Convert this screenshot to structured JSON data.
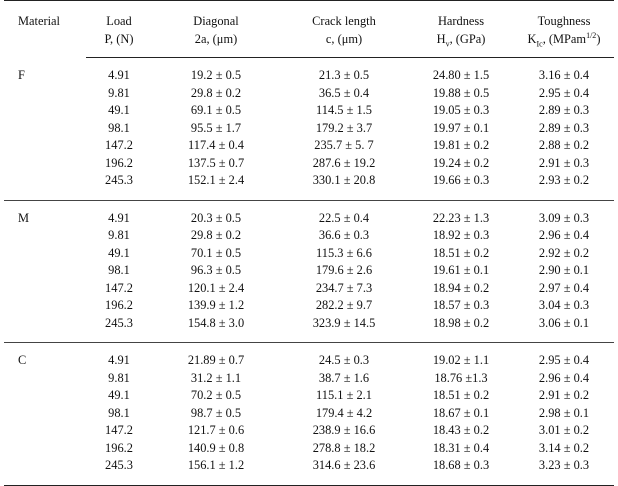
{
  "headers": {
    "material": "Material",
    "load_1": "Load",
    "load_2": "P, (N)",
    "diagonal_1": "Diagonal",
    "diagonal_2": "2a, (μm)",
    "crack_1": "Crack length",
    "crack_2": "c, (μm)",
    "hardness_1": "Hardness",
    "hardness_2a": "H",
    "hardness_sub": "v",
    "hardness_2b": ", (GPa)",
    "toughness_1": "Toughness",
    "toughness_2a": "K",
    "toughness_sub": "Ic",
    "toughness_2b": ", (MPam",
    "toughness_sup": "1/2",
    "toughness_2c": ")"
  },
  "groups": [
    {
      "material": "F",
      "rows": [
        [
          "4.91",
          "19.2 ± 0.5",
          "21.3 ± 0.5",
          "24.80 ± 1.5",
          "3.16 ± 0.4"
        ],
        [
          "9.81",
          "29.8 ± 0.2",
          "36.5 ± 0.4",
          "19.88 ± 0.5",
          "2.95 ± 0.4"
        ],
        [
          "49.1",
          "69.1 ± 0.5",
          "114.5 ± 1.5",
          "19.05 ± 0.3",
          "2.89 ± 0.3"
        ],
        [
          "98.1",
          "95.5 ± 1.7",
          "179.2 ± 3.7",
          "19.97 ± 0.1",
          "2.89 ± 0.3"
        ],
        [
          "147.2",
          "117.4 ± 0.4",
          "235.7 ± 5. 7",
          "19.81 ± 0.2",
          "2.88 ± 0.2"
        ],
        [
          "196.2",
          "137.5 ± 0.7",
          "287.6 ± 19.2",
          "19.24 ± 0.2",
          "2.91 ± 0.3"
        ],
        [
          "245.3",
          "152.1 ± 2.4",
          "330.1 ± 20.8",
          "19.66 ± 0.3",
          "2.93 ± 0.2"
        ]
      ]
    },
    {
      "material": "M",
      "rows": [
        [
          "4.91",
          "20.3 ± 0.5",
          "22.5 ± 0.4",
          "22.23 ± 1.3",
          "3.09 ± 0.3"
        ],
        [
          "9.81",
          "29.8 ± 0.2",
          "36.6 ± 0.3",
          "18.92 ± 0.3",
          "2.96 ± 0.4"
        ],
        [
          "49.1",
          "70.1 ± 0.5",
          "115.3 ± 6.6",
          "18.51 ± 0.2",
          "2.92 ± 0.2"
        ],
        [
          "98.1",
          "96.3 ± 0.5",
          "179.6 ± 2.6",
          "19.61 ± 0.1",
          "2.90 ± 0.1"
        ],
        [
          "147.2",
          "120.1 ± 2.4",
          "234.7 ± 7.3",
          "18.94 ± 0.2",
          "2.97 ± 0.4"
        ],
        [
          "196.2",
          "139.9 ± 1.2",
          "282.2 ± 9.7",
          "18.57 ± 0.3",
          "3.04 ± 0.3"
        ],
        [
          "245.3",
          "154.8 ± 3.0",
          "323.9 ± 14.5",
          "18.98 ± 0.2",
          "3.06 ± 0.1"
        ]
      ]
    },
    {
      "material": "C",
      "rows": [
        [
          "4.91",
          "21.89 ± 0.7",
          "24.5 ± 0.3",
          "19.02 ± 1.1",
          "2.95 ± 0.4"
        ],
        [
          "9.81",
          "31.2 ± 1.1",
          "38.7 ± 1.6",
          "18.76 ±1.3",
          "2.96 ± 0.4"
        ],
        [
          "49.1",
          "70.2 ± 0.5",
          "115.1 ± 2.1",
          "18.51 ± 0.2",
          "2.91 ± 0.2"
        ],
        [
          "98.1",
          "98.7 ± 0.5",
          "179.4 ± 4.2",
          "18.67 ± 0.1",
          "2.98 ± 0.1"
        ],
        [
          "147.2",
          "121.7 ± 0.6",
          "238.9 ± 16.6",
          "18.43 ± 0.2",
          "3.01 ± 0.2"
        ],
        [
          "196.2",
          "140.9 ± 0.8",
          "278.8 ± 18.2",
          "18.31 ± 0.4",
          "3.14 ± 0.2"
        ],
        [
          "245.3",
          "156.1 ± 1.2",
          "314.6 ± 23.6",
          "18.68 ± 0.3",
          "3.23 ± 0.3"
        ]
      ]
    }
  ]
}
